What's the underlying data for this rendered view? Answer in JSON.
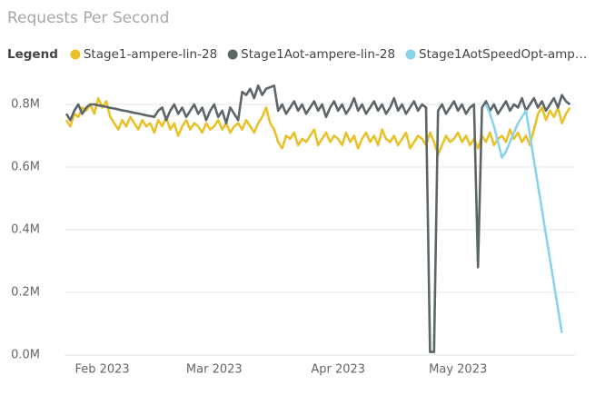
{
  "chart_data": {
    "type": "line",
    "title": "Requests Per Second",
    "legend_title": "Legend",
    "categories": [
      null,
      null,
      null,
      null,
      null,
      null,
      null,
      null,
      null,
      "Feb 2023",
      null,
      null,
      null,
      null,
      null,
      null,
      null,
      null,
      null,
      null,
      null,
      null,
      null,
      null,
      null,
      null,
      null,
      null,
      null,
      null,
      null,
      null,
      null,
      null,
      null,
      null,
      null,
      "Mar 2023",
      null,
      null,
      null,
      null,
      null,
      null,
      null,
      null,
      null,
      null,
      null,
      null,
      null,
      null,
      null,
      null,
      null,
      null,
      null,
      null,
      null,
      null,
      null,
      null,
      null,
      null,
      null,
      null,
      null,
      null,
      "Apr 2023",
      null,
      null,
      null,
      null,
      null,
      null,
      null,
      null,
      null,
      null,
      null,
      null,
      null,
      null,
      null,
      null,
      null,
      null,
      null,
      null,
      null,
      null,
      null,
      null,
      null,
      null,
      null,
      null,
      null,
      "May 2023",
      null,
      null,
      null,
      null,
      null,
      null,
      null,
      null,
      null,
      null,
      null,
      null,
      null,
      null,
      null,
      null,
      null,
      null,
      null,
      null,
      null,
      null,
      null,
      null,
      null,
      null,
      null,
      null
    ],
    "series": [
      {
        "name": "Stage1-ampere-lin-28",
        "color": "#E8C12B",
        "values": [
          0.75,
          0.73,
          0.77,
          0.76,
          0.79,
          0.78,
          0.8,
          0.77,
          0.82,
          0.79,
          0.81,
          0.76,
          0.74,
          0.72,
          0.75,
          0.73,
          0.76,
          0.74,
          0.72,
          0.75,
          0.73,
          0.74,
          0.71,
          0.75,
          0.73,
          0.76,
          0.72,
          0.74,
          0.7,
          0.73,
          0.75,
          0.72,
          0.74,
          0.73,
          0.71,
          0.74,
          0.72,
          0.73,
          0.75,
          0.72,
          0.74,
          0.71,
          0.73,
          0.74,
          0.72,
          0.75,
          0.73,
          0.71,
          0.74,
          0.76,
          0.79,
          0.74,
          0.72,
          0.68,
          0.66,
          0.7,
          0.69,
          0.71,
          0.67,
          0.69,
          0.68,
          0.7,
          0.72,
          0.67,
          0.69,
          0.71,
          0.68,
          0.7,
          0.69,
          0.67,
          0.71,
          0.68,
          0.7,
          0.66,
          0.69,
          0.71,
          0.68,
          0.7,
          0.67,
          0.72,
          0.69,
          0.68,
          0.7,
          0.67,
          0.69,
          0.71,
          0.66,
          0.68,
          0.7,
          0.69,
          0.67,
          0.71,
          0.68,
          0.64,
          0.67,
          0.7,
          0.68,
          0.69,
          0.71,
          0.68,
          0.7,
          0.67,
          0.69,
          0.66,
          0.7,
          0.68,
          0.71,
          0.67,
          0.69,
          0.7,
          0.68,
          0.72,
          0.69,
          0.71,
          0.68,
          0.7,
          0.67,
          0.72,
          0.77,
          0.79,
          0.75,
          0.78,
          0.76,
          0.79,
          0.74,
          0.77,
          0.79
        ]
      },
      {
        "name": "Stage1Aot-ampere-lin-28",
        "color": "#5C6668",
        "values": [
          0.77,
          0.75,
          0.78,
          0.8,
          0.77,
          0.79,
          0.8,
          0.8,
          0.797,
          0.795,
          0.792,
          0.789,
          0.787,
          0.784,
          0.781,
          0.779,
          0.776,
          0.773,
          0.771,
          0.768,
          0.765,
          0.763,
          0.76,
          0.78,
          0.79,
          0.75,
          0.78,
          0.8,
          0.77,
          0.79,
          0.76,
          0.78,
          0.8,
          0.77,
          0.79,
          0.75,
          0.78,
          0.8,
          0.76,
          0.78,
          0.74,
          0.79,
          0.77,
          0.75,
          0.84,
          0.83,
          0.85,
          0.82,
          0.86,
          0.83,
          0.85,
          0.855,
          0.86,
          0.78,
          0.8,
          0.77,
          0.79,
          0.81,
          0.78,
          0.8,
          0.77,
          0.79,
          0.81,
          0.78,
          0.8,
          0.76,
          0.79,
          0.81,
          0.78,
          0.8,
          0.77,
          0.79,
          0.82,
          0.78,
          0.8,
          0.77,
          0.79,
          0.81,
          0.78,
          0.8,
          0.77,
          0.79,
          0.82,
          0.78,
          0.8,
          0.77,
          0.79,
          0.81,
          0.78,
          0.8,
          0.79,
          0.01,
          0.01,
          0.78,
          0.8,
          0.77,
          0.79,
          0.81,
          0.78,
          0.8,
          0.77,
          0.79,
          0.8,
          0.28,
          0.79,
          0.81,
          0.78,
          0.8,
          0.77,
          0.79,
          0.81,
          0.78,
          0.8,
          0.79,
          0.82,
          0.78,
          0.8,
          0.82,
          0.79,
          0.81,
          0.78,
          0.8,
          0.82,
          0.79,
          0.83,
          0.81,
          0.8
        ]
      },
      {
        "name": "Stage1AotSpeedOpt-amp…",
        "color": "#8AD4EB",
        "values": [
          null,
          null,
          null,
          null,
          null,
          null,
          null,
          null,
          null,
          null,
          null,
          null,
          null,
          null,
          null,
          null,
          null,
          null,
          null,
          null,
          null,
          null,
          null,
          null,
          null,
          null,
          null,
          null,
          null,
          null,
          null,
          null,
          null,
          null,
          null,
          null,
          null,
          null,
          null,
          null,
          null,
          null,
          null,
          null,
          null,
          null,
          null,
          null,
          null,
          null,
          null,
          null,
          null,
          null,
          null,
          null,
          null,
          null,
          null,
          null,
          null,
          null,
          null,
          null,
          null,
          null,
          null,
          null,
          null,
          null,
          null,
          null,
          null,
          null,
          null,
          null,
          null,
          null,
          null,
          null,
          null,
          null,
          null,
          null,
          null,
          null,
          null,
          null,
          null,
          null,
          null,
          null,
          null,
          null,
          null,
          null,
          null,
          null,
          null,
          null,
          null,
          null,
          null,
          null,
          null,
          0.8,
          0.77,
          0.73,
          0.68,
          0.63,
          0.65,
          0.68,
          0.71,
          0.74,
          0.76,
          0.78,
          0.701,
          0.622,
          0.542,
          0.464,
          0.384,
          0.306,
          0.227,
          0.148,
          0.07,
          null,
          null
        ]
      }
    ],
    "ylim": [
      0,
      0.86
    ],
    "yticks": [
      {
        "value": 0,
        "label": "0.0M"
      },
      {
        "value": 0.2,
        "label": "0.2M"
      },
      {
        "value": 0.4,
        "label": "0.4M"
      },
      {
        "value": 0.6,
        "label": "0.6M"
      },
      {
        "value": 0.8,
        "label": "0.8M"
      }
    ],
    "grid": true
  }
}
